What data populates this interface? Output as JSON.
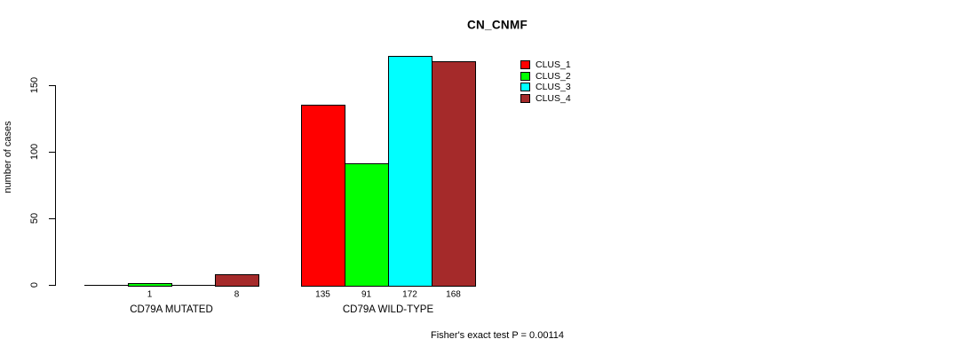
{
  "chart_data": {
    "type": "bar",
    "title": "CN_CNMF",
    "ylabel": "number of cases",
    "xlabel": "",
    "yticks": [
      0,
      50,
      100,
      150
    ],
    "ylim": [
      0,
      175
    ],
    "grid": false,
    "legend_position": "top-right",
    "legend": [
      {
        "label": "CLUS_1",
        "color": "#ff0000"
      },
      {
        "label": "CLUS_2",
        "color": "#00ff00"
      },
      {
        "label": "CLUS_3",
        "color": "#00ffff"
      },
      {
        "label": "CLUS_4",
        "color": "#a52a2a"
      }
    ],
    "groups": [
      {
        "label": "CD79A MUTATED",
        "bars": [
          {
            "cluster": "CLUS_1",
            "value": 0,
            "value_label": ""
          },
          {
            "cluster": "CLUS_2",
            "value": 1,
            "value_label": "1"
          },
          {
            "cluster": "CLUS_3",
            "value": 0,
            "value_label": ""
          },
          {
            "cluster": "CLUS_4",
            "value": 8,
            "value_label": "8"
          }
        ]
      },
      {
        "label": "CD79A WILD-TYPE",
        "bars": [
          {
            "cluster": "CLUS_1",
            "value": 135,
            "value_label": "135"
          },
          {
            "cluster": "CLUS_2",
            "value": 91,
            "value_label": "91"
          },
          {
            "cluster": "CLUS_3",
            "value": 172,
            "value_label": "172"
          },
          {
            "cluster": "CLUS_4",
            "value": 168,
            "value_label": "168"
          }
        ]
      }
    ],
    "footer": "Fisher's exact test P = 0.00114"
  }
}
